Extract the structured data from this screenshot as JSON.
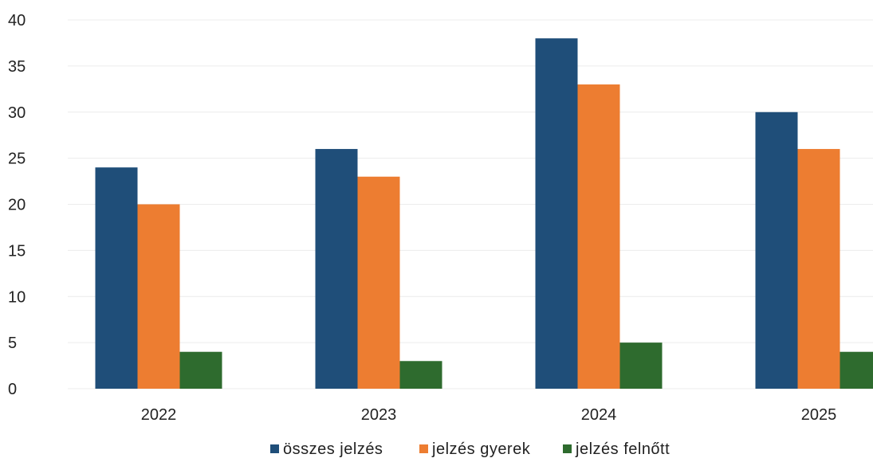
{
  "chart_data": {
    "type": "bar",
    "title": "",
    "xlabel": "",
    "ylabel": "",
    "categories": [
      "2022",
      "2023",
      "2024",
      "2025"
    ],
    "ylim": [
      0,
      40
    ],
    "yticks": [
      0,
      5,
      10,
      15,
      20,
      25,
      30,
      35,
      40
    ],
    "grid": true,
    "legend_position": "bottom",
    "series": [
      {
        "name": "összes jelzés",
        "color": "#1f4e79",
        "values": [
          24,
          26,
          38,
          30
        ]
      },
      {
        "name": "jelzés gyerek",
        "color": "#ed7d31",
        "values": [
          20,
          23,
          33,
          26
        ]
      },
      {
        "name": "jelzés felnőtt",
        "color": "#2e6b2e",
        "values": [
          4,
          3,
          5,
          4
        ]
      }
    ]
  }
}
